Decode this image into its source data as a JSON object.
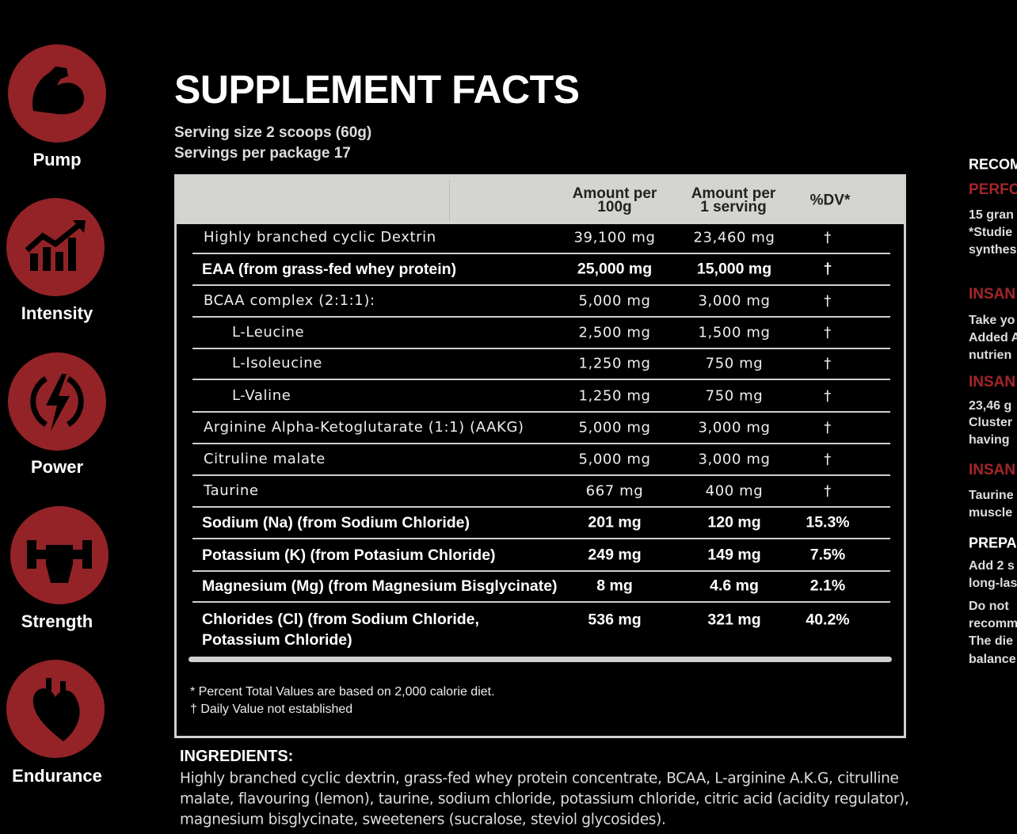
{
  "sidebar": {
    "items": [
      "Pump",
      "Intensity",
      "Power",
      "Strength",
      "Endurance"
    ]
  },
  "header": {
    "title": "SUPPLEMENT FACTS",
    "serving_size": "Serving size 2 scoops (60g)",
    "servings_per_package": "Servings per package 17"
  },
  "table": {
    "columns": [
      [
        "Amount per",
        "100g"
      ],
      [
        "Amount per",
        "1 serving"
      ],
      [
        "%DV*"
      ]
    ],
    "rows": [
      {
        "name": [
          "Highly branched cyclic Dextrin"
        ],
        "per_100g": "39,100 mg",
        "per_serving": "23,460 mg",
        "dv": "†",
        "bold": false,
        "indent": false
      },
      {
        "name": [
          "EAA (from grass-fed whey protein)"
        ],
        "per_100g": "25,000 mg",
        "per_serving": "15,000 mg",
        "dv": "†",
        "bold": true,
        "indent": false
      },
      {
        "name": [
          "BCAA complex (2:1:1):"
        ],
        "per_100g": "5,000 mg",
        "per_serving": "3,000 mg",
        "dv": "†",
        "bold": false,
        "indent": false
      },
      {
        "name": [
          "L-Leucine"
        ],
        "per_100g": "2,500 mg",
        "per_serving": "1,500 mg",
        "dv": "†",
        "bold": false,
        "indent": true
      },
      {
        "name": [
          "L-Isoleucine"
        ],
        "per_100g": "1,250 mg",
        "per_serving": "750 mg",
        "dv": "†",
        "bold": false,
        "indent": true
      },
      {
        "name": [
          "L-Valine"
        ],
        "per_100g": "1,250 mg",
        "per_serving": "750 mg",
        "dv": "†",
        "bold": false,
        "indent": true
      },
      {
        "name": [
          "Arginine Alpha-Ketoglutarate (1:1) (AAKG)"
        ],
        "per_100g": "5,000 mg",
        "per_serving": "3,000 mg",
        "dv": "†",
        "bold": false,
        "indent": false
      },
      {
        "name": [
          "Citruline malate"
        ],
        "per_100g": "5,000 mg",
        "per_serving": "3,000 mg",
        "dv": "†",
        "bold": false,
        "indent": false
      },
      {
        "name": [
          "Taurine"
        ],
        "per_100g": "667 mg",
        "per_serving": "400 mg",
        "dv": "†",
        "bold": false,
        "indent": false
      },
      {
        "name": [
          "Sodium (Na) (from Sodium Chloride)"
        ],
        "per_100g": "201 mg",
        "per_serving": "120 mg",
        "dv": "15.3%",
        "bold": true,
        "indent": false
      },
      {
        "name": [
          "Potassium (K) (from Potasium Chloride)"
        ],
        "per_100g": "249 mg",
        "per_serving": "149 mg",
        "dv": "7.5%",
        "bold": true,
        "indent": false
      },
      {
        "name": [
          "Magnesium (Mg) (from Magnesium Bisglycinate)"
        ],
        "per_100g": "8 mg",
        "per_serving": "4.6 mg",
        "dv": "2.1%",
        "bold": true,
        "indent": false
      },
      {
        "name": [
          "Chlorides (Cl) (from Sodium Chloride,",
          "Potassium Chloride)"
        ],
        "per_100g": "536 mg",
        "per_serving": "321 mg",
        "dv": "40.2%",
        "bold": true,
        "indent": false
      }
    ],
    "footnotes": [
      "* Percent Total Values are based on 2,000 calorie diet.",
      "† Daily Value not established"
    ]
  },
  "ingredients": {
    "heading": "INGREDIENTS:",
    "lines": [
      "Highly branched cyclic dextrin, grass-fed whey protein concentrate, BCAA, L-arginine A.K.G, citrulline",
      "malate, flavouring (lemon), taurine, sodium chloride, potassium chloride, citric acid (acidity regulator),",
      "magnesium bisglycinate, sweeteners (sucralose, steviol glycosides)."
    ]
  },
  "right_panel": [
    {
      "style": "heading",
      "lines": [
        "RECOM"
      ]
    },
    {
      "style": "red",
      "lines": [
        "PERFO"
      ]
    },
    {
      "style": "body",
      "lines": [
        "15 gran",
        "*Studie",
        "synthes"
      ]
    },
    {
      "style": "red",
      "lines": [
        "INSAN"
      ]
    },
    {
      "style": "body",
      "lines": [
        "Take yo",
        "Added A",
        "nutrien"
      ]
    },
    {
      "style": "red",
      "lines": [
        "INSAN"
      ]
    },
    {
      "style": "body",
      "lines": [
        "23,46 g",
        "Cluster",
        "having"
      ]
    },
    {
      "style": "red",
      "lines": [
        "INSAN"
      ]
    },
    {
      "style": "body",
      "lines": [
        "Taurine",
        "muscle"
      ]
    },
    {
      "style": "heading",
      "lines": [
        "PREPA"
      ]
    },
    {
      "style": "body",
      "lines": [
        "Add 2 s",
        "long-las"
      ]
    },
    {
      "style": "body",
      "lines": [
        "Do not",
        "recomm",
        "The die",
        "balance"
      ]
    }
  ]
}
